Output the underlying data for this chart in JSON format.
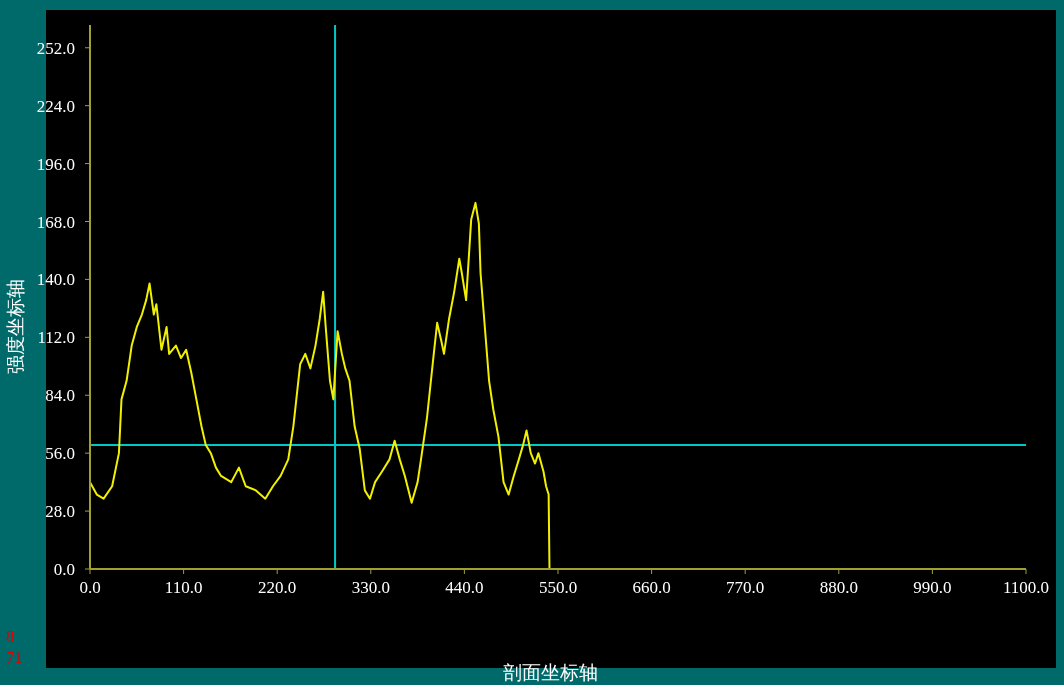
{
  "chart_data": {
    "type": "line",
    "xlabel": "剖面坐标轴",
    "ylabel": "强度坐标轴",
    "x": [
      0,
      8,
      16,
      26,
      34,
      37,
      43,
      49,
      55,
      61,
      66,
      70,
      75,
      78,
      84,
      90,
      93,
      101,
      107,
      113,
      119,
      125,
      131,
      136,
      142,
      148,
      154,
      166,
      175,
      183,
      195,
      206,
      215,
      224,
      233,
      239,
      247,
      253,
      259,
      265,
      270,
      274,
      277,
      282,
      286,
      289,
      291,
      296,
      300,
      305,
      311,
      317,
      323,
      329,
      335,
      343,
      352,
      358,
      364,
      370,
      378,
      385,
      389,
      396,
      404,
      408,
      413,
      416,
      422,
      428,
      434,
      437,
      442,
      448,
      453,
      457,
      459,
      464,
      469,
      474,
      480,
      486,
      492,
      498,
      504,
      509,
      513,
      518,
      523,
      527,
      533,
      536,
      539,
      540
    ],
    "series": [
      {
        "color": "#f0f000",
        "values": [
          42,
          36,
          34,
          40,
          56,
          82,
          91,
          108,
          117,
          123,
          130,
          138,
          123,
          128,
          106,
          117,
          104,
          108,
          102,
          106,
          95,
          82,
          69,
          60,
          56,
          49,
          45,
          42,
          49,
          40,
          38,
          34,
          40,
          45,
          53,
          69,
          99,
          104,
          97,
          108,
          121,
          134,
          117,
          91,
          82,
          102,
          115,
          104,
          97,
          91,
          69,
          58,
          38,
          34,
          42,
          47,
          53,
          62,
          53,
          45,
          32,
          42,
          53,
          73,
          104,
          119,
          110,
          104,
          121,
          134,
          150,
          143,
          130,
          169,
          177,
          167,
          143,
          117,
          91,
          77,
          64,
          42,
          36,
          45,
          53,
          60,
          67,
          56,
          51,
          56,
          47,
          40,
          36,
          0
        ]
      }
    ],
    "xlim": [
      0,
      1100
    ],
    "xticks": [
      {
        "value": 0,
        "label": "0.0"
      },
      {
        "value": 110,
        "label": "110.0"
      },
      {
        "value": 220,
        "label": "220.0"
      },
      {
        "value": 330,
        "label": "330.0"
      },
      {
        "value": 440,
        "label": "440.0"
      },
      {
        "value": 550,
        "label": "550.0"
      },
      {
        "value": 660,
        "label": "660.0"
      },
      {
        "value": 770,
        "label": "770.0"
      },
      {
        "value": 880,
        "label": "880.0"
      },
      {
        "value": 990,
        "label": "990.0"
      },
      {
        "value": 1100,
        "label": "1100.0"
      }
    ],
    "ylim": [
      0,
      263
    ],
    "yticks": [
      {
        "value": 0,
        "label": "0.0"
      },
      {
        "value": 28,
        "label": "28.0"
      },
      {
        "value": 56,
        "label": "56.0"
      },
      {
        "value": 84,
        "label": "84.0"
      },
      {
        "value": 112,
        "label": "112.0"
      },
      {
        "value": 140,
        "label": "140.0"
      },
      {
        "value": 168,
        "label": "168.0"
      },
      {
        "value": 196,
        "label": "196.0"
      },
      {
        "value": 224,
        "label": "224.0"
      },
      {
        "value": 252,
        "label": "252.0"
      }
    ],
    "ref_lines": [
      {
        "axis": "y",
        "value": 60,
        "color": "#00c8c8"
      },
      {
        "axis": "x",
        "value": 288,
        "color": "#00c8c8"
      }
    ],
    "annotations": [
      "8",
      "71"
    ]
  }
}
